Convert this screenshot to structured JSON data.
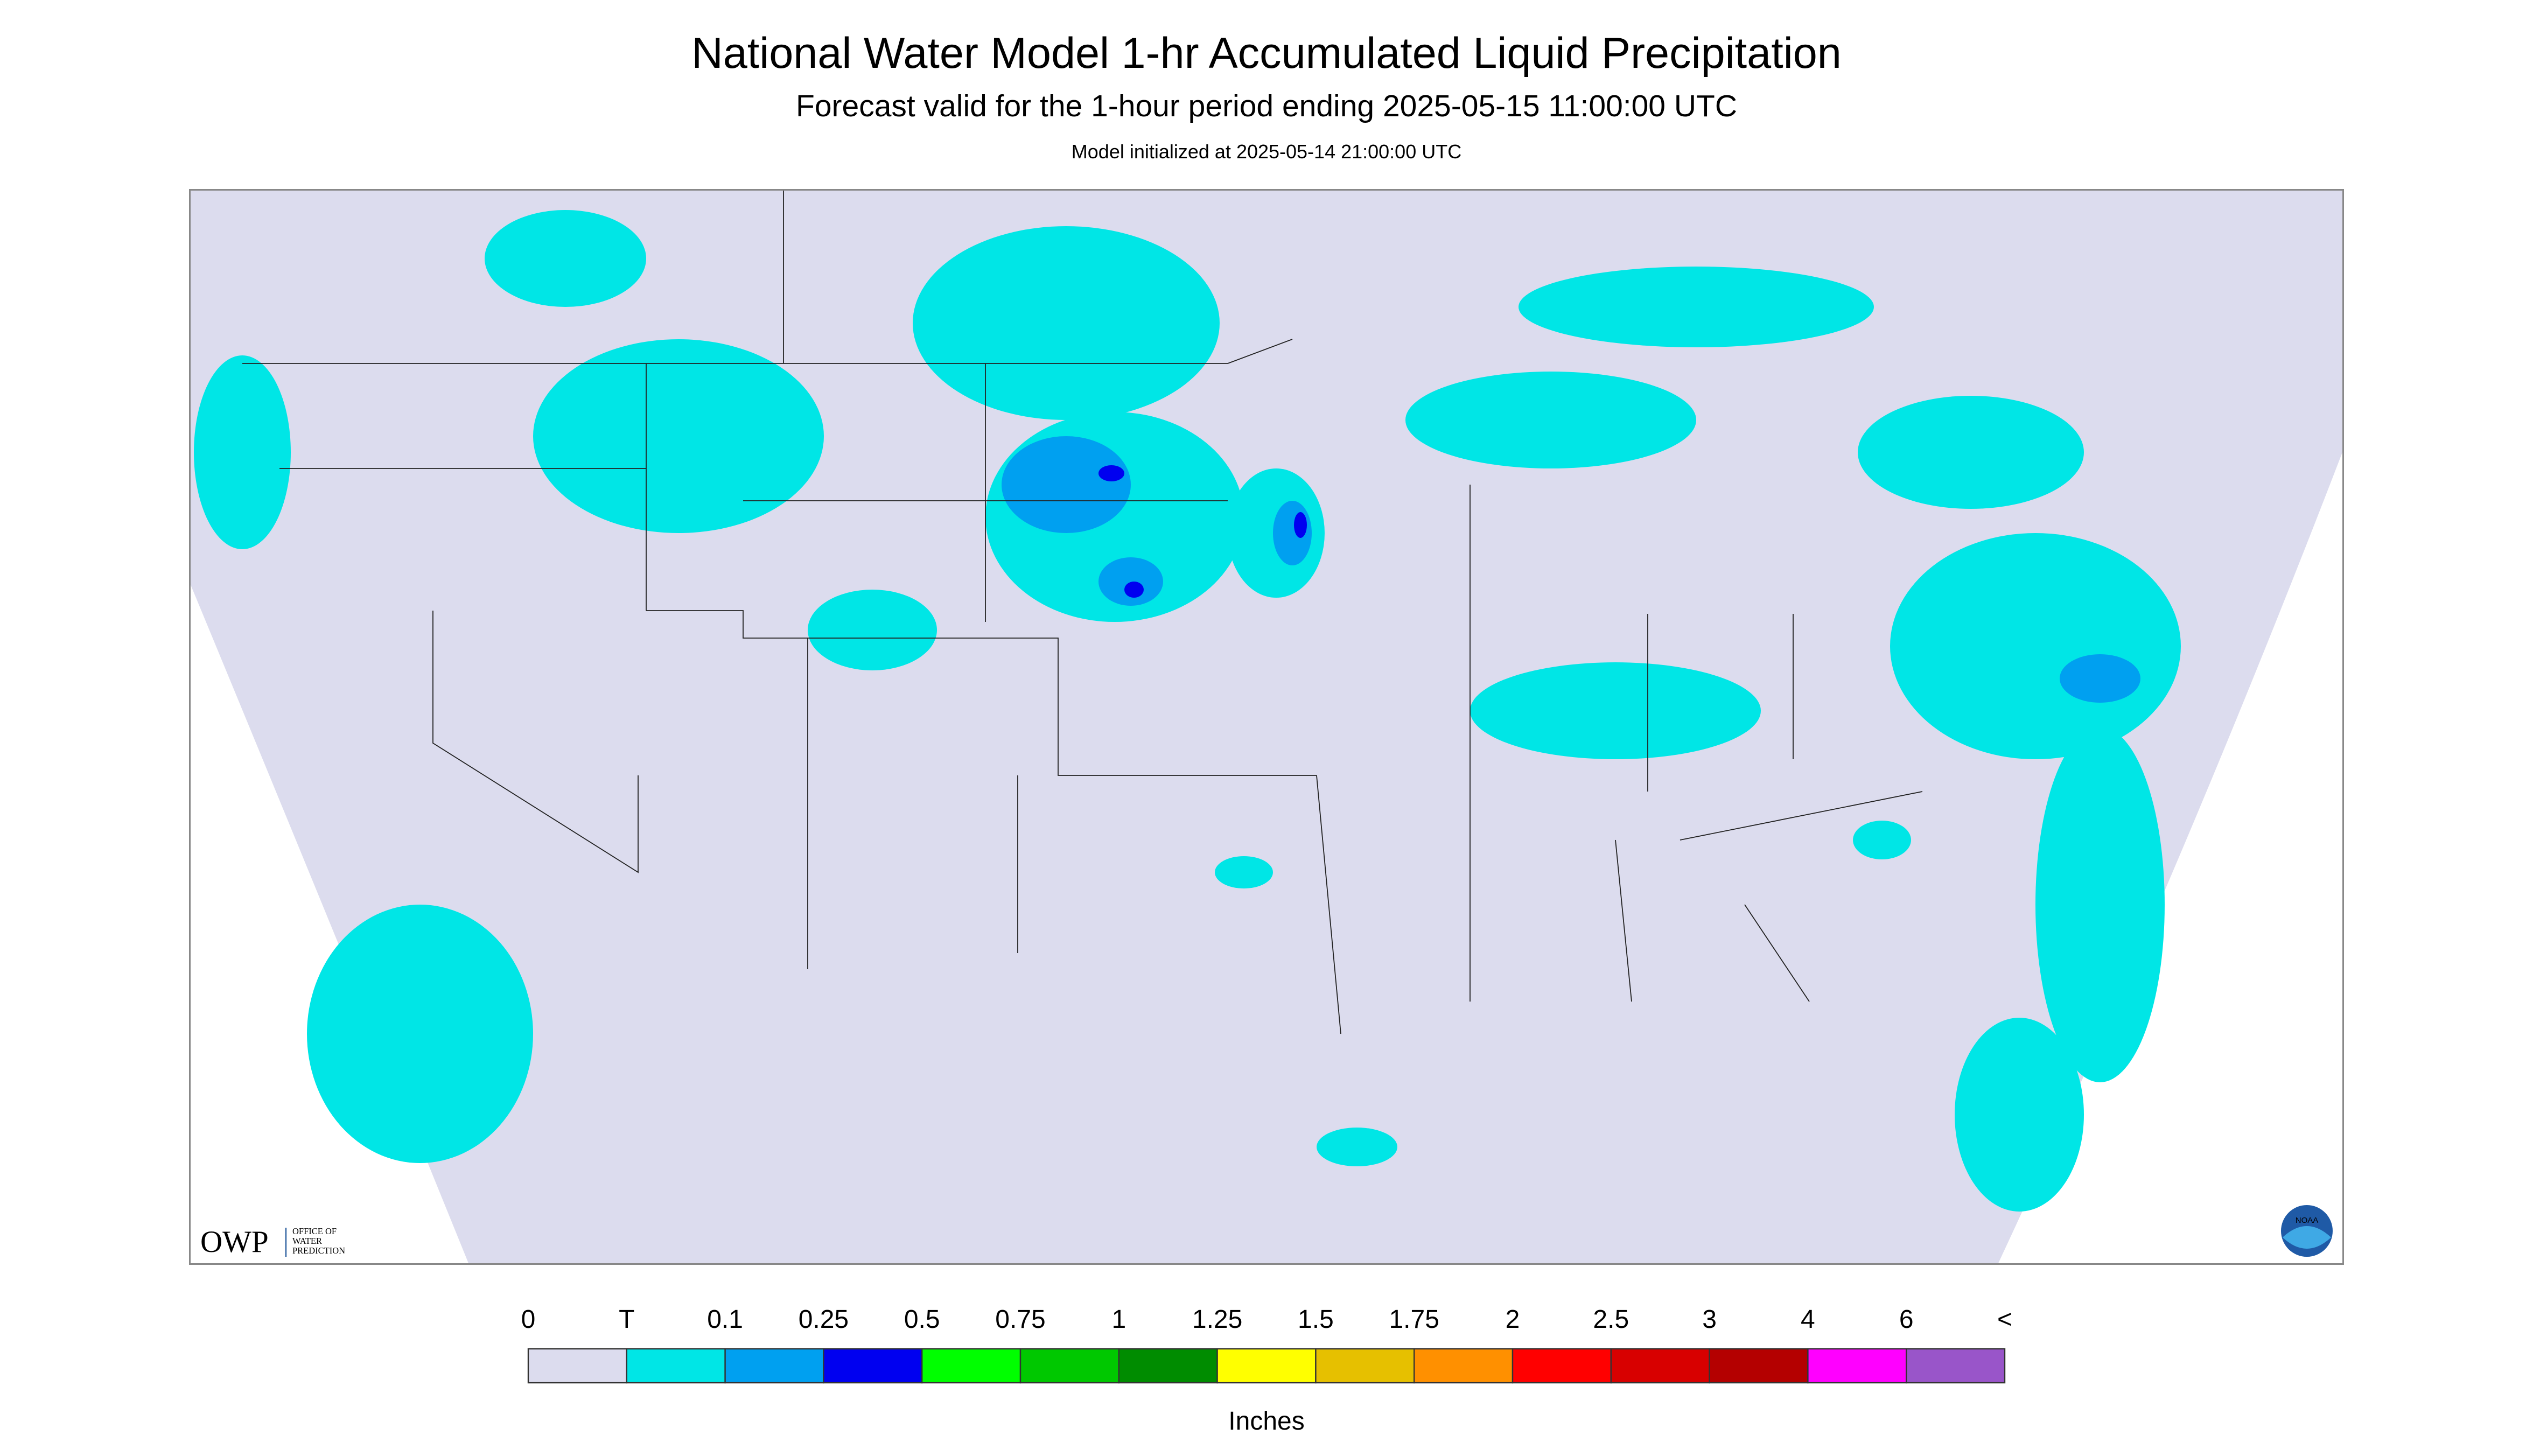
{
  "header": {
    "title": "National Water Model 1-hr Accumulated Liquid Precipitation",
    "subtitle": "Forecast valid for the 1-hour period ending 2025-05-15 11:00:00 UTC",
    "init": "Model initialized at 2025-05-14 21:00:00 UTC"
  },
  "logo": {
    "owp": "OWP",
    "lines": [
      "OFFICE OF",
      "WATER",
      "PREDICTION"
    ],
    "noaa": "NOAA"
  },
  "legend": {
    "labels": [
      "0",
      "T",
      "0.1",
      "0.25",
      "0.5",
      "0.75",
      "1",
      "1.25",
      "1.5",
      "1.75",
      "2",
      "2.5",
      "3",
      "4",
      "6",
      "<"
    ],
    "colors": [
      "#dcdcee",
      "#00e6e6",
      "#00a0f0",
      "#0000f0",
      "#00ff00",
      "#00c800",
      "#008c00",
      "#ffff00",
      "#e6c000",
      "#ff9000",
      "#ff0000",
      "#d80000",
      "#b40000",
      "#ff00ff",
      "#9955c9"
    ],
    "unit": "Inches"
  }
}
